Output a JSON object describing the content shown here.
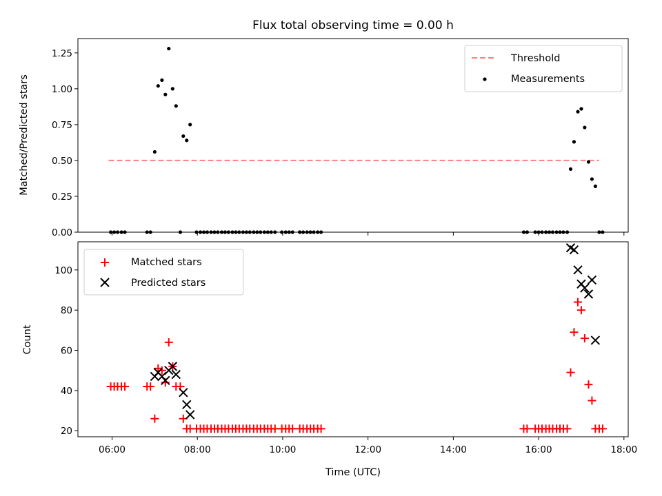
{
  "chart_data": [
    {
      "type": "scatter",
      "title": "Flux total observing time = 0.00 h",
      "xlabel": "",
      "ylabel": "Matched/Predicted stars",
      "xlim": [
        5.2,
        18.1
      ],
      "ylim": [
        0,
        1.35
      ],
      "yticks": [
        "0.00",
        "0.25",
        "0.50",
        "0.75",
        "1.00",
        "1.25"
      ],
      "ytick_values": [
        0,
        0.25,
        0.5,
        0.75,
        1.0,
        1.25
      ],
      "xtick_values": [
        6,
        8,
        10,
        12,
        14,
        16,
        18
      ],
      "grid": false,
      "legend": "top-right",
      "threshold": {
        "name": "Threshold",
        "value": 0.5,
        "x": [
          5.92,
          17.42
        ],
        "color": "#ff7f7f"
      },
      "series": [
        {
          "name": "Measurements",
          "color": "#000000",
          "x": [
            5.97,
            6.05,
            6.13,
            6.22,
            6.3,
            6.82,
            6.9,
            7.0,
            7.08,
            7.17,
            7.25,
            7.33,
            7.42,
            7.5,
            7.6,
            7.67,
            7.75,
            7.83,
            7.98,
            8.07,
            8.15,
            8.23,
            8.32,
            8.4,
            8.48,
            8.57,
            8.65,
            8.73,
            8.82,
            8.9,
            8.98,
            9.07,
            9.15,
            9.23,
            9.32,
            9.4,
            9.48,
            9.57,
            9.65,
            9.73,
            9.82,
            9.98,
            10.07,
            10.15,
            10.23,
            10.4,
            10.48,
            10.57,
            10.65,
            10.73,
            10.82,
            10.9,
            15.65,
            15.73,
            15.92,
            16.0,
            16.08,
            16.17,
            16.25,
            16.33,
            16.42,
            16.5,
            16.58,
            16.67,
            16.75,
            16.83,
            16.92,
            17.0,
            17.08,
            17.17,
            17.25,
            17.33,
            17.42,
            17.5
          ],
          "y": [
            0,
            0,
            0,
            0,
            0,
            0,
            0,
            0.56,
            1.02,
            1.06,
            0.96,
            1.28,
            1.0,
            0.88,
            0,
            0.67,
            0.64,
            0.75,
            0,
            0,
            0,
            0,
            0,
            0,
            0,
            0,
            0,
            0,
            0,
            0,
            0,
            0,
            0,
            0,
            0,
            0,
            0,
            0,
            0,
            0,
            0,
            0,
            0,
            0,
            0,
            0,
            0,
            0,
            0,
            0,
            0,
            0,
            0,
            0,
            0,
            0,
            0,
            0,
            0,
            0,
            0,
            0,
            0,
            0,
            0.44,
            0.63,
            0.84,
            0.86,
            0.73,
            0.49,
            0.37,
            0.32,
            0,
            0
          ]
        }
      ]
    },
    {
      "type": "scatter",
      "title": "",
      "xlabel": "Time (UTC)",
      "ylabel": "Count",
      "xlim": [
        5.2,
        18.1
      ],
      "ylim": [
        17,
        114
      ],
      "yticks": [
        "20",
        "40",
        "60",
        "80",
        "100"
      ],
      "ytick_values": [
        20,
        40,
        60,
        80,
        100
      ],
      "xticks": [
        "06:00",
        "08:00",
        "10:00",
        "12:00",
        "14:00",
        "16:00",
        "18:00"
      ],
      "xtick_values": [
        6,
        8,
        10,
        12,
        14,
        16,
        18
      ],
      "grid": false,
      "legend": "top-left",
      "series": [
        {
          "name": "Matched stars",
          "marker": "+",
          "color": "#ff0000",
          "x": [
            5.97,
            6.05,
            6.13,
            6.22,
            6.3,
            6.82,
            6.9,
            7.0,
            7.08,
            7.17,
            7.25,
            7.33,
            7.42,
            7.5,
            7.6,
            7.67,
            7.75,
            7.83,
            7.98,
            8.07,
            8.15,
            8.23,
            8.32,
            8.4,
            8.48,
            8.57,
            8.65,
            8.73,
            8.82,
            8.9,
            8.98,
            9.07,
            9.15,
            9.23,
            9.32,
            9.4,
            9.48,
            9.57,
            9.65,
            9.73,
            9.82,
            9.98,
            10.07,
            10.15,
            10.23,
            10.4,
            10.48,
            10.57,
            10.65,
            10.73,
            10.82,
            10.9,
            15.65,
            15.73,
            15.92,
            16.0,
            16.08,
            16.17,
            16.25,
            16.33,
            16.42,
            16.5,
            16.58,
            16.67,
            16.75,
            16.83,
            16.92,
            17.0,
            17.08,
            17.17,
            17.25,
            17.33,
            17.42,
            17.5
          ],
          "y": [
            42,
            42,
            42,
            42,
            42,
            42,
            42,
            26,
            51,
            50,
            44,
            64,
            52,
            42,
            42,
            26,
            21,
            21,
            21,
            21,
            21,
            21,
            21,
            21,
            21,
            21,
            21,
            21,
            21,
            21,
            21,
            21,
            21,
            21,
            21,
            21,
            21,
            21,
            21,
            21,
            21,
            21,
            21,
            21,
            21,
            21,
            21,
            21,
            21,
            21,
            21,
            21,
            21,
            21,
            21,
            21,
            21,
            21,
            21,
            21,
            21,
            21,
            21,
            21,
            49,
            69,
            84,
            80,
            66,
            43,
            35,
            21,
            21,
            21
          ]
        },
        {
          "name": "Predicted stars",
          "marker": "x",
          "color": "#000000",
          "x": [
            7.0,
            7.08,
            7.17,
            7.25,
            7.33,
            7.42,
            7.5,
            7.67,
            7.75,
            7.83,
            16.75,
            16.83,
            16.92,
            17.0,
            17.08,
            17.17,
            17.25,
            17.33
          ],
          "y": [
            47,
            49,
            47,
            45,
            50,
            52,
            48,
            39,
            33,
            28,
            111,
            110,
            100,
            93,
            91,
            88,
            95,
            65
          ]
        }
      ]
    }
  ]
}
